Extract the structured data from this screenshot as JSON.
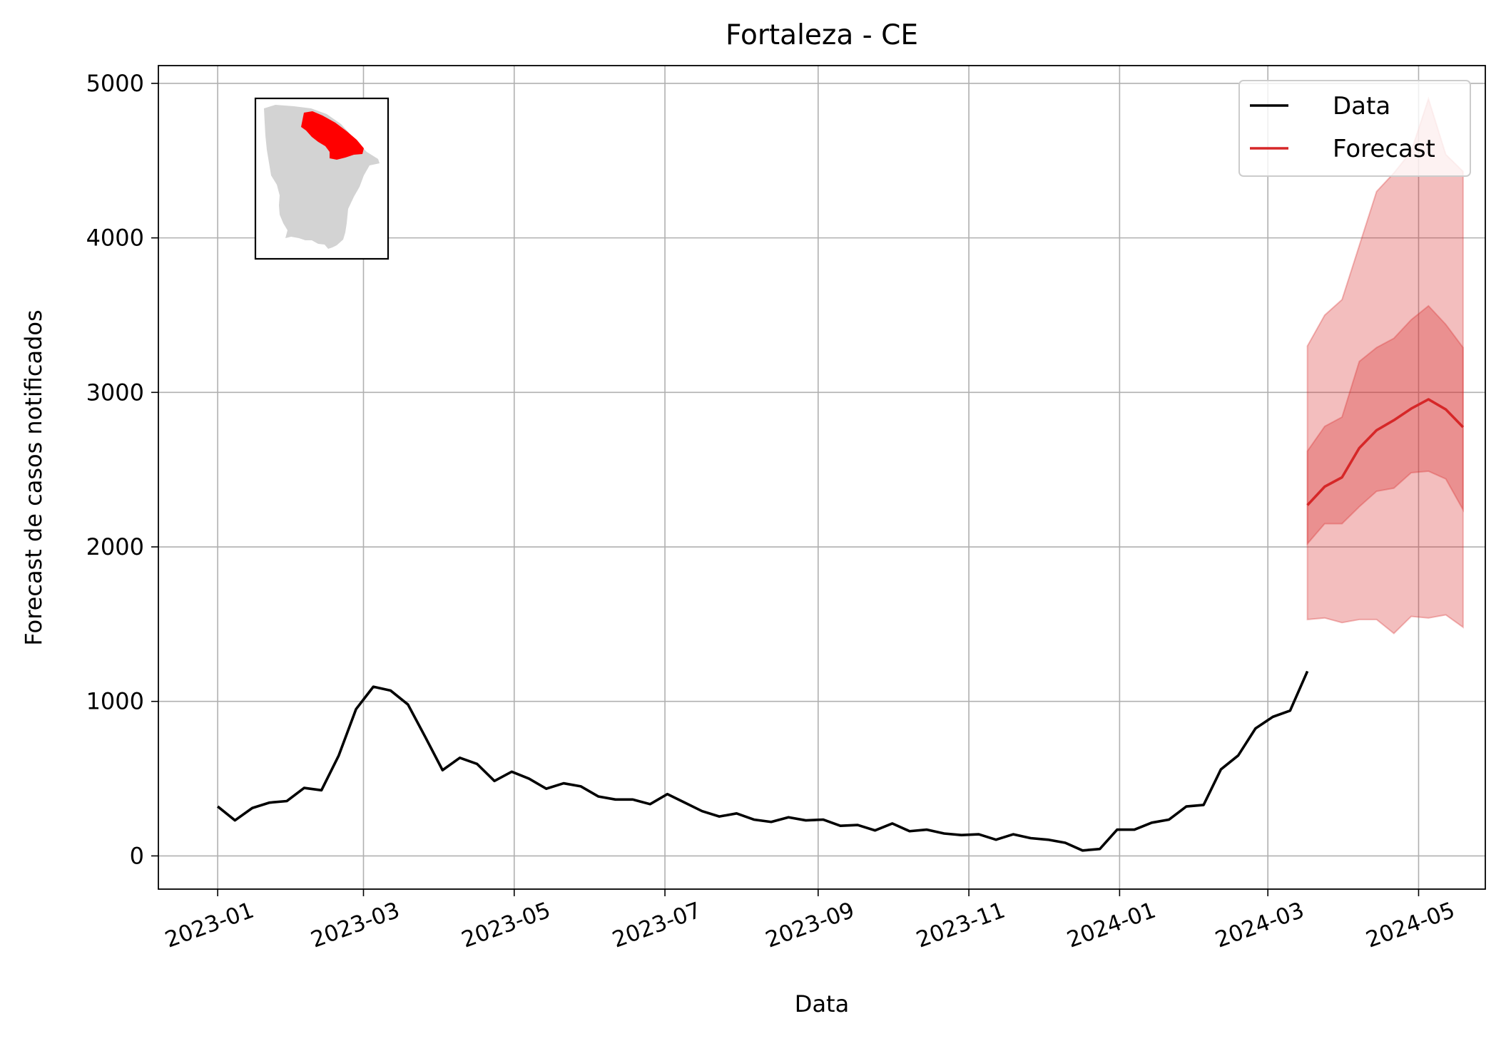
{
  "chart_data": {
    "type": "line",
    "title": "Fortaleza - CE",
    "xlabel": "Data",
    "ylabel": "Forecast de casos notificados",
    "x_range": [
      "2022-12-08",
      "2024-05-28"
    ],
    "ylim": [
      -215,
      5115
    ],
    "grid": true,
    "legend_position": "top-right",
    "x_ticks": [
      "2023-01-01",
      "2023-03-01",
      "2023-05-01",
      "2023-07-01",
      "2023-09-01",
      "2023-11-01",
      "2024-01-01",
      "2024-03-01",
      "2024-05-01"
    ],
    "x_tick_labels": [
      "2023-01",
      "2023-03",
      "2023-05",
      "2023-07",
      "2023-09",
      "2023-11",
      "2024-01",
      "2024-03",
      "2024-05"
    ],
    "y_ticks": [
      0,
      1000,
      2000,
      3000,
      4000,
      5000
    ],
    "y_tick_labels": [
      "0",
      "1000",
      "2000",
      "3000",
      "4000",
      "5000"
    ],
    "series": [
      {
        "name": "Data",
        "color": "#000000",
        "x": [
          "2023-01-01",
          "2023-01-08",
          "2023-01-15",
          "2023-01-22",
          "2023-01-29",
          "2023-02-05",
          "2023-02-12",
          "2023-02-19",
          "2023-02-26",
          "2023-03-05",
          "2023-03-12",
          "2023-03-19",
          "2023-03-26",
          "2023-04-02",
          "2023-04-09",
          "2023-04-16",
          "2023-04-23",
          "2023-04-30",
          "2023-05-07",
          "2023-05-14",
          "2023-05-21",
          "2023-05-28",
          "2023-06-04",
          "2023-06-11",
          "2023-06-18",
          "2023-06-25",
          "2023-07-02",
          "2023-07-09",
          "2023-07-16",
          "2023-07-23",
          "2023-07-30",
          "2023-08-06",
          "2023-08-13",
          "2023-08-20",
          "2023-08-27",
          "2023-09-03",
          "2023-09-10",
          "2023-09-17",
          "2023-09-24",
          "2023-10-01",
          "2023-10-08",
          "2023-10-15",
          "2023-10-22",
          "2023-10-29",
          "2023-11-05",
          "2023-11-12",
          "2023-11-19",
          "2023-11-26",
          "2023-12-03",
          "2023-12-10",
          "2023-12-17",
          "2023-12-24",
          "2023-12-31",
          "2024-01-07",
          "2024-01-14",
          "2024-01-21",
          "2024-01-28",
          "2024-02-04",
          "2024-02-11",
          "2024-02-18",
          "2024-02-25",
          "2024-03-03",
          "2024-03-10",
          "2024-03-17"
        ],
        "values": [
          320,
          230,
          310,
          345,
          355,
          440,
          425,
          650,
          950,
          1095,
          1070,
          980,
          770,
          555,
          635,
          595,
          485,
          545,
          500,
          435,
          470,
          450,
          385,
          365,
          365,
          335,
          400,
          345,
          290,
          255,
          275,
          235,
          220,
          250,
          230,
          235,
          195,
          200,
          165,
          210,
          160,
          170,
          145,
          135,
          140,
          105,
          140,
          115,
          105,
          85,
          35,
          45,
          170,
          170,
          215,
          235,
          320,
          330,
          560,
          650,
          825,
          900,
          940,
          1195
        ]
      },
      {
        "name": "Forecast",
        "color": "#d62728",
        "x": [
          "2024-03-17",
          "2024-03-24",
          "2024-03-31",
          "2024-04-07",
          "2024-04-14",
          "2024-04-21",
          "2024-04-28",
          "2024-05-05",
          "2024-05-12",
          "2024-05-19"
        ],
        "values": [
          2270,
          2390,
          2450,
          2640,
          2755,
          2820,
          2895,
          2955,
          2890,
          2775
        ],
        "lower_90": [
          1530,
          1540,
          1510,
          1530,
          1530,
          1440,
          1550,
          1540,
          1560,
          1480
        ],
        "upper_90": [
          3300,
          3500,
          3600,
          3950,
          4300,
          4420,
          4560,
          4900,
          4540,
          4430
        ],
        "lower_50": [
          2020,
          2150,
          2150,
          2260,
          2360,
          2380,
          2480,
          2490,
          2440,
          2240
        ],
        "upper_50": [
          2620,
          2780,
          2840,
          3200,
          3290,
          3350,
          3470,
          3560,
          3440,
          3290
        ]
      }
    ],
    "inset": {
      "caption": "Ceará state map with the Fortaleza health region highlighted",
      "base_color": "#d3d3d3",
      "highlight_color": "#ff0000"
    }
  }
}
